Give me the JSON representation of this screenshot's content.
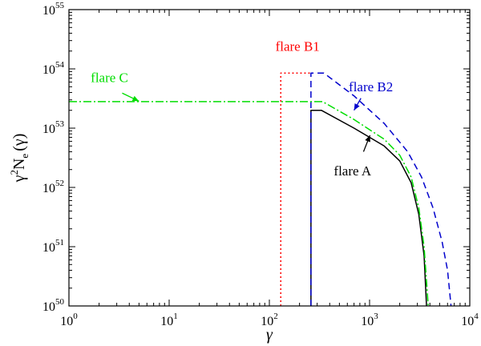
{
  "chart_data": {
    "type": "line",
    "title": "",
    "xlabel": "γ",
    "ylabel_parts": {
      "base": "γ",
      "sup": "2",
      "mid": "N",
      "sub": "e",
      "tail": "(γ)"
    },
    "xscale": "log",
    "yscale": "log",
    "xlim": [
      1,
      10000
    ],
    "ylim": [
      1e+50,
      1e+55
    ],
    "grid": false,
    "xticks": [
      {
        "value": 1,
        "base": "10",
        "exp": "0"
      },
      {
        "value": 10,
        "base": "10",
        "exp": "1"
      },
      {
        "value": 100,
        "base": "10",
        "exp": "2"
      },
      {
        "value": 1000,
        "base": "10",
        "exp": "3"
      },
      {
        "value": 10000,
        "base": "10",
        "exp": "4"
      }
    ],
    "yticks": [
      {
        "value": 1e+50,
        "base": "10",
        "exp": "50"
      },
      {
        "value": 1e+51,
        "base": "10",
        "exp": "51"
      },
      {
        "value": 1e+52,
        "base": "10",
        "exp": "52"
      },
      {
        "value": 1e+53,
        "base": "10",
        "exp": "53"
      },
      {
        "value": 1e+54,
        "base": "10",
        "exp": "54"
      },
      {
        "value": 1e+55,
        "base": "10",
        "exp": "55"
      }
    ],
    "series": [
      {
        "name": "flare A",
        "color": "#000000",
        "dash": "",
        "points": [
          [
            260,
            1e+50
          ],
          [
            260,
            2e+53
          ],
          [
            330,
            2e+53
          ],
          [
            700,
            1e+53
          ],
          [
            1400,
            5e+52
          ],
          [
            2000,
            2.8e+52
          ],
          [
            2600,
            1.2e+52
          ],
          [
            3100,
            3.5e+51
          ],
          [
            3500,
            7e+50
          ],
          [
            3700,
            1e+50
          ]
        ]
      },
      {
        "name": "flare B1",
        "color": "#ff0000",
        "dash": "2 3",
        "points": [
          [
            130,
            1e+50
          ],
          [
            130,
            8.5e+53
          ],
          [
            260,
            8.5e+53
          ]
        ]
      },
      {
        "name": "flare B2",
        "color": "#0000cc",
        "dash": "8 5",
        "points": [
          [
            260,
            1e+50
          ],
          [
            260,
            8.5e+53
          ],
          [
            350,
            8.5e+53
          ],
          [
            700,
            3.5e+53
          ],
          [
            1400,
            1.2e+53
          ],
          [
            2400,
            4e+52
          ],
          [
            3300,
            1.5e+52
          ],
          [
            4300,
            4.5e+51
          ],
          [
            5300,
            1.2e+51
          ],
          [
            6000,
            4e+50
          ],
          [
            6500,
            1e+50
          ]
        ]
      },
      {
        "name": "flare C",
        "color": "#00dd00",
        "dash": "10 3 2 3",
        "points": [
          [
            1,
            2.8e+53
          ],
          [
            290,
            2.8e+53
          ],
          [
            340,
            2.8e+53
          ],
          [
            700,
            1.4e+53
          ],
          [
            1400,
            6.5e+52
          ],
          [
            2000,
            3.5e+52
          ],
          [
            2600,
            1.5e+52
          ],
          [
            3100,
            4.5e+51
          ],
          [
            3500,
            1e+51
          ],
          [
            3850,
            1e+50
          ]
        ]
      }
    ],
    "annotations": [
      {
        "text": "flare B1",
        "color": "#ff0000",
        "data_xy": [
          115,
          2e+54
        ],
        "anchor": "start"
      },
      {
        "text": "flare C",
        "color": "#00dd00",
        "data_xy": [
          1.65,
          6e+53
        ],
        "anchor": "start"
      },
      {
        "text": "flare B2",
        "color": "#0000cc",
        "data_xy": [
          620,
          4.2e+53
        ],
        "anchor": "start"
      },
      {
        "text": "flare A",
        "color": "#000000",
        "data_xy": [
          440,
          1.6e+52
        ],
        "anchor": "start"
      }
    ],
    "arrows": [
      {
        "series": "flare C",
        "color": "#00dd00",
        "from": [
          3.4,
          3.9e+53
        ],
        "to": [
          5.0,
          2.85e+53
        ]
      },
      {
        "series": "flare B2",
        "color": "#0000cc",
        "from": [
          820,
          3.2e+53
        ],
        "to": [
          700,
          2e+53
        ]
      },
      {
        "series": "flare A",
        "color": "#000000",
        "from": [
          870,
          4e+52
        ],
        "to": [
          1010,
          7.6e+52
        ]
      }
    ]
  }
}
